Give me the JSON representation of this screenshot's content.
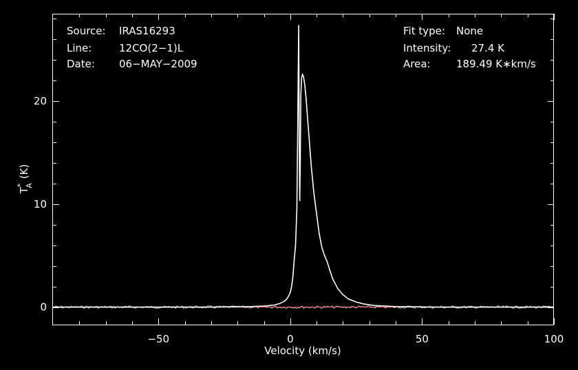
{
  "info": {
    "source_label": "Source:",
    "source_value": "IRAS16293",
    "line_label": "Line:",
    "line_value": "12CO(2−1)L",
    "date_label": "Date:",
    "date_value": "06−MAY−2009",
    "fit_label": "Fit type:",
    "fit_value": "None",
    "intensity_label": "Intensity:",
    "intensity_value": "27.4 K",
    "area_label": "Area:",
    "area_value": "189.49 K∗km/s"
  },
  "colors": {
    "background": "#000000",
    "spectrum": "#ffffff",
    "baseline": "#ff2020"
  },
  "chart_data": {
    "type": "line",
    "xlabel": "Velocity (km/s)",
    "ylabel_main": "T",
    "ylabel_sub": "A",
    "ylabel_sup": "*",
    "ylabel_unit": "(K)",
    "xlim": [
      -90,
      100
    ],
    "ylim": [
      -1.7,
      28.5
    ],
    "xticks": [
      -50,
      0,
      50,
      100
    ],
    "xtick_labels": [
      "−50",
      "0",
      "50",
      "100"
    ],
    "yticks": [
      0,
      10,
      20
    ],
    "ytick_labels": [
      "0",
      "10",
      "20"
    ],
    "baseline_value": 0,
    "series": [
      {
        "x": [
          -90,
          -30,
          -15,
          -10,
          -6,
          -4,
          -2,
          -1,
          0,
          0.5,
          1,
          1.5,
          2,
          2.5,
          2.8,
          3.0,
          3.2,
          3.4,
          3.6,
          3.8,
          4.0,
          4.3,
          4.6,
          5.0,
          5.5,
          6.0,
          6.5,
          7.0,
          7.5,
          8.0,
          8.5,
          9.0,
          10,
          11,
          12,
          13,
          14,
          15,
          16,
          18,
          20,
          22,
          25,
          28,
          32,
          40,
          55,
          100
        ],
        "y": [
          0,
          0,
          0.05,
          0.1,
          0.2,
          0.35,
          0.6,
          0.9,
          1.4,
          2.0,
          3.0,
          4.6,
          6.0,
          9.5,
          17.0,
          22.0,
          27.4,
          16.0,
          10.3,
          14.0,
          20.5,
          22.3,
          22.6,
          22.4,
          21.6,
          20.3,
          18.6,
          16.9,
          15.2,
          13.6,
          12.3,
          11.0,
          9.0,
          7.1,
          5.8,
          5.0,
          4.4,
          3.6,
          2.8,
          1.8,
          1.2,
          0.8,
          0.5,
          0.3,
          0.15,
          0.05,
          0,
          0
        ]
      }
    ]
  }
}
